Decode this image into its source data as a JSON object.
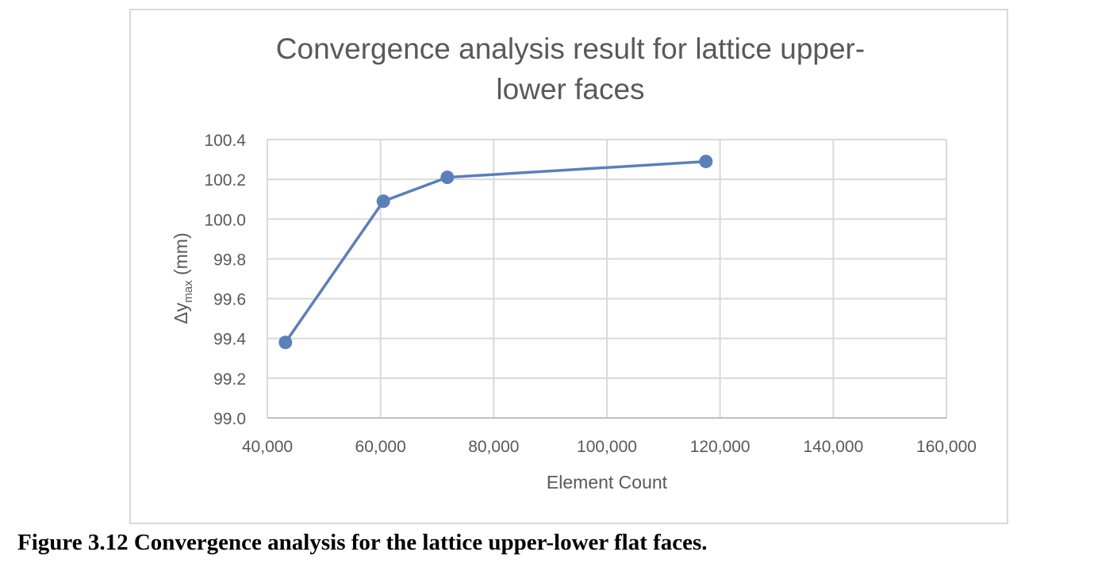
{
  "chart_data": {
    "type": "line",
    "title_lines": [
      "Convergence analysis result for lattice upper-",
      "lower faces"
    ],
    "xlabel": "Element Count",
    "ylabel": {
      "base": "Δy",
      "sub": "max",
      "unit": " (mm)"
    },
    "xlim": [
      40000,
      160000
    ],
    "ylim": [
      99.0,
      100.4
    ],
    "x_ticks": [
      40000,
      60000,
      80000,
      100000,
      120000,
      140000,
      160000
    ],
    "x_tick_labels": [
      "40,000",
      "60,000",
      "80,000",
      "100,000",
      "120,000",
      "140,000",
      "160,000"
    ],
    "y_ticks": [
      99.0,
      99.2,
      99.4,
      99.6,
      99.8,
      100.0,
      100.2,
      100.4
    ],
    "y_tick_labels": [
      "99.0",
      "99.2",
      "99.4",
      "99.6",
      "99.8",
      "100.0",
      "100.2",
      "100.4"
    ],
    "grid": true,
    "series": [
      {
        "name": "Δymax",
        "color": "#5b7fba",
        "x": [
          43200,
          60500,
          71800,
          117500
        ],
        "y": [
          99.38,
          100.09,
          100.21,
          100.29
        ]
      }
    ]
  },
  "caption": "Figure 3.12 Convergence analysis for the lattice upper-lower flat faces."
}
